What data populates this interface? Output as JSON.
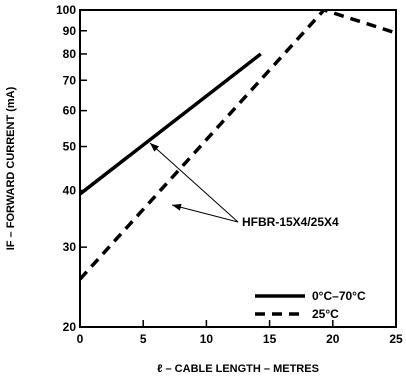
{
  "chart_data": {
    "type": "line",
    "title": "",
    "xlabel": "ℓ – CABLE LENGTH – METRES",
    "ylabel": "IF – FORWARD CURRENT (mA)",
    "x_ticks": [
      0,
      5,
      10,
      15,
      20,
      25
    ],
    "y_ticks": [
      20,
      30,
      40,
      50,
      60,
      70,
      80,
      90,
      100
    ],
    "y_tick_labels": [
      "20",
      "30",
      "40",
      "50",
      "60",
      "70",
      "80",
      "90",
      "100"
    ],
    "xlim": [
      0,
      25
    ],
    "ylim": [
      20,
      100
    ],
    "y_scale": "log",
    "grid": false,
    "legend_position": "lower-right",
    "annotation": "HFBR-15X4/25X4",
    "series": [
      {
        "name": "0°C–70°C",
        "style": "solid",
        "x": [
          0,
          14.3
        ],
        "y": [
          39.3,
          80
        ]
      },
      {
        "name": "25°C",
        "style": "dashed",
        "x": [
          0,
          19.3,
          25
        ],
        "y": [
          25.5,
          100,
          89
        ]
      }
    ]
  }
}
